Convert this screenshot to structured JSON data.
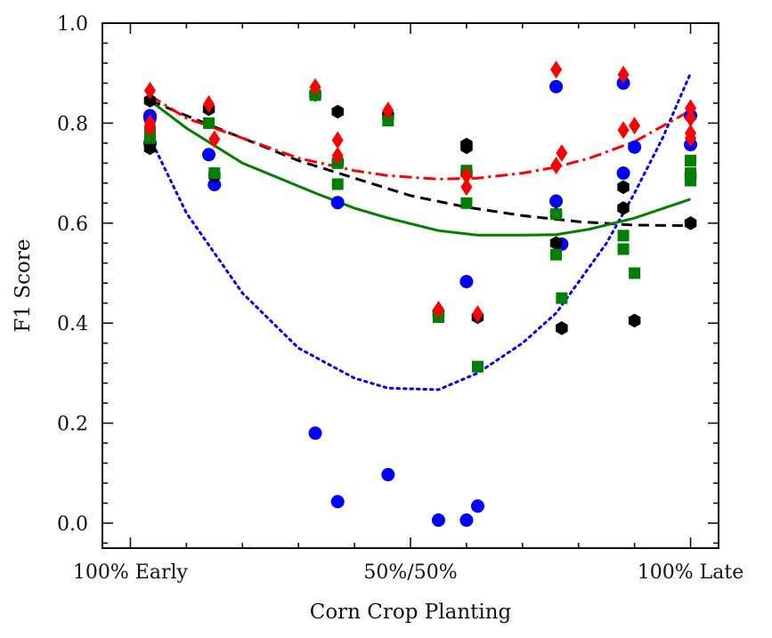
{
  "chart_data": {
    "type": "scatter",
    "title": "",
    "xlabel": "Corn Crop Planting",
    "ylabel": "F1 Score",
    "xlim": [
      -0.05,
      1.05
    ],
    "ylim": [
      -0.05,
      1.0
    ],
    "grid": false,
    "xticks": [
      {
        "value": 0.0,
        "label": "100% Early"
      },
      {
        "value": 0.5,
        "label": "50%/50%"
      },
      {
        "value": 1.0,
        "label": "100% Late"
      }
    ],
    "yticks": [
      {
        "value": 0.0,
        "label": "0.0"
      },
      {
        "value": 0.2,
        "label": "0.2"
      },
      {
        "value": 0.4,
        "label": "0.4"
      },
      {
        "value": 0.6,
        "label": "0.6"
      },
      {
        "value": 0.8,
        "label": "0.8"
      },
      {
        "value": 1.0,
        "label": "1.0"
      }
    ],
    "series": [
      {
        "color": "#0000ff",
        "marker": "circle",
        "points": [
          [
            0.035,
            0.815
          ],
          [
            0.035,
            0.81
          ],
          [
            0.035,
            0.76
          ],
          [
            0.14,
            0.737
          ],
          [
            0.15,
            0.677
          ],
          [
            0.33,
            0.18
          ],
          [
            0.37,
            0.641
          ],
          [
            0.37,
            0.043
          ],
          [
            0.46,
            0.097
          ],
          [
            0.55,
            0.006
          ],
          [
            0.6,
            0.483
          ],
          [
            0.6,
            0.006
          ],
          [
            0.62,
            0.034
          ],
          [
            0.76,
            0.873
          ],
          [
            0.76,
            0.644
          ],
          [
            0.77,
            0.558
          ],
          [
            0.88,
            0.88
          ],
          [
            0.88,
            0.7
          ],
          [
            0.9,
            0.752
          ],
          [
            1.0,
            0.815
          ],
          [
            1.0,
            0.757
          ]
        ],
        "trend_style": "dotted",
        "trend": [
          [
            0.035,
            0.77
          ],
          [
            0.1,
            0.62
          ],
          [
            0.2,
            0.46
          ],
          [
            0.3,
            0.35
          ],
          [
            0.4,
            0.29
          ],
          [
            0.46,
            0.27
          ],
          [
            0.55,
            0.267
          ],
          [
            0.62,
            0.3
          ],
          [
            0.7,
            0.36
          ],
          [
            0.76,
            0.42
          ],
          [
            0.85,
            0.56
          ],
          [
            0.9,
            0.66
          ],
          [
            0.95,
            0.77
          ],
          [
            1.0,
            0.9
          ]
        ]
      },
      {
        "color": "#000000",
        "marker": "hexagon",
        "points": [
          [
            0.035,
            0.845
          ],
          [
            0.035,
            0.75
          ],
          [
            0.14,
            0.828
          ],
          [
            0.15,
            0.695
          ],
          [
            0.33,
            0.857
          ],
          [
            0.37,
            0.722
          ],
          [
            0.37,
            0.823
          ],
          [
            0.46,
            0.815
          ],
          [
            0.55,
            0.42
          ],
          [
            0.6,
            0.757
          ],
          [
            0.6,
            0.752
          ],
          [
            0.6,
            0.7
          ],
          [
            0.62,
            0.412
          ],
          [
            0.76,
            0.618
          ],
          [
            0.76,
            0.56
          ],
          [
            0.77,
            0.39
          ],
          [
            0.88,
            0.672
          ],
          [
            0.88,
            0.63
          ],
          [
            0.9,
            0.405
          ],
          [
            1.0,
            0.695
          ],
          [
            1.0,
            0.6
          ]
        ],
        "trend_style": "dashed",
        "trend": [
          [
            0.035,
            0.845
          ],
          [
            0.1,
            0.815
          ],
          [
            0.2,
            0.77
          ],
          [
            0.3,
            0.725
          ],
          [
            0.4,
            0.69
          ],
          [
            0.5,
            0.655
          ],
          [
            0.6,
            0.632
          ],
          [
            0.7,
            0.615
          ],
          [
            0.8,
            0.603
          ],
          [
            0.9,
            0.596
          ],
          [
            1.0,
            0.595
          ]
        ]
      },
      {
        "color": "#008000",
        "marker": "square",
        "points": [
          [
            0.035,
            0.785
          ],
          [
            0.035,
            0.77
          ],
          [
            0.14,
            0.8
          ],
          [
            0.15,
            0.7
          ],
          [
            0.33,
            0.856
          ],
          [
            0.37,
            0.678
          ],
          [
            0.37,
            0.72
          ],
          [
            0.46,
            0.805
          ],
          [
            0.55,
            0.412
          ],
          [
            0.6,
            0.705
          ],
          [
            0.6,
            0.64
          ],
          [
            0.62,
            0.313
          ],
          [
            0.76,
            0.537
          ],
          [
            0.76,
            0.618
          ],
          [
            0.77,
            0.45
          ],
          [
            0.88,
            0.575
          ],
          [
            0.88,
            0.548
          ],
          [
            0.9,
            0.5
          ],
          [
            1.0,
            0.725
          ],
          [
            1.0,
            0.7
          ],
          [
            1.0,
            0.685
          ]
        ],
        "trend_style": "solid",
        "trend": [
          [
            0.035,
            0.845
          ],
          [
            0.1,
            0.79
          ],
          [
            0.2,
            0.72
          ],
          [
            0.33,
            0.66
          ],
          [
            0.4,
            0.63
          ],
          [
            0.46,
            0.61
          ],
          [
            0.55,
            0.585
          ],
          [
            0.62,
            0.576
          ],
          [
            0.7,
            0.576
          ],
          [
            0.76,
            0.577
          ],
          [
            0.82,
            0.588
          ],
          [
            0.9,
            0.61
          ],
          [
            1.0,
            0.648
          ]
        ]
      },
      {
        "color": "#ff0000",
        "marker": "diamond",
        "points": [
          [
            0.035,
            0.865
          ],
          [
            0.035,
            0.8
          ],
          [
            0.035,
            0.79
          ],
          [
            0.14,
            0.838
          ],
          [
            0.15,
            0.768
          ],
          [
            0.33,
            0.872
          ],
          [
            0.37,
            0.766
          ],
          [
            0.37,
            0.735
          ],
          [
            0.46,
            0.825
          ],
          [
            0.55,
            0.427
          ],
          [
            0.6,
            0.695
          ],
          [
            0.6,
            0.672
          ],
          [
            0.62,
            0.418
          ],
          [
            0.76,
            0.907
          ],
          [
            0.76,
            0.715
          ],
          [
            0.77,
            0.74
          ],
          [
            0.88,
            0.897
          ],
          [
            0.88,
            0.786
          ],
          [
            0.9,
            0.795
          ],
          [
            1.0,
            0.83
          ],
          [
            1.0,
            0.81
          ],
          [
            1.0,
            0.78
          ],
          [
            1.0,
            0.77
          ]
        ],
        "trend_style": "dashdot",
        "trend": [
          [
            0.035,
            0.855
          ],
          [
            0.1,
            0.81
          ],
          [
            0.2,
            0.77
          ],
          [
            0.3,
            0.73
          ],
          [
            0.4,
            0.705
          ],
          [
            0.46,
            0.695
          ],
          [
            0.55,
            0.688
          ],
          [
            0.62,
            0.69
          ],
          [
            0.7,
            0.7
          ],
          [
            0.76,
            0.712
          ],
          [
            0.82,
            0.73
          ],
          [
            0.9,
            0.763
          ],
          [
            1.0,
            0.825
          ]
        ]
      }
    ]
  }
}
